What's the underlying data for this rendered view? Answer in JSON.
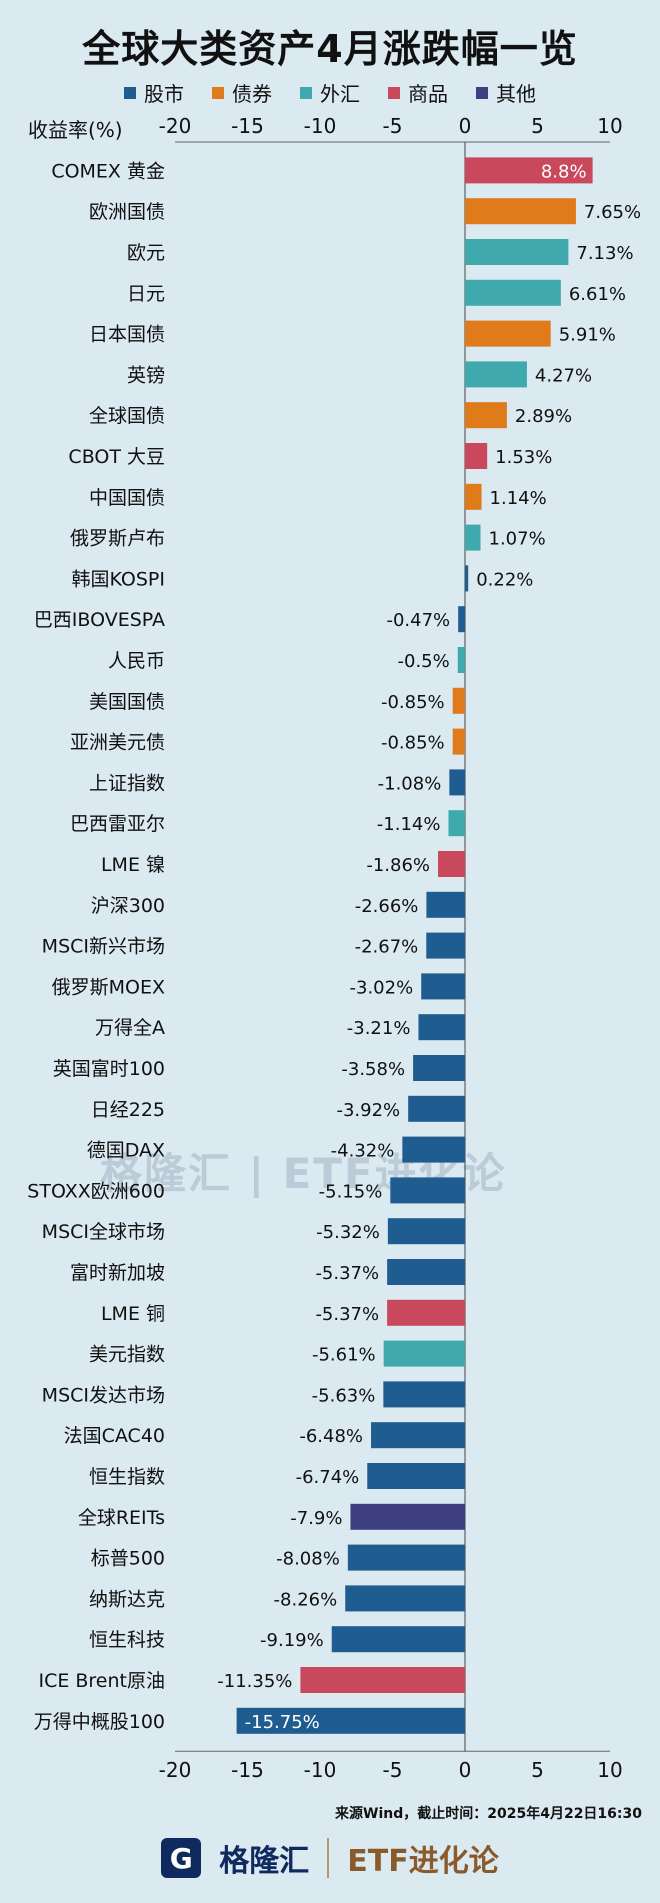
{
  "title": "全球大类资产4月涨跌幅一览",
  "legend": [
    {
      "label": "股市",
      "color": "#1f5c8f"
    },
    {
      "label": "债券",
      "color": "#e07b1b"
    },
    {
      "label": "外汇",
      "color": "#3fa9ad"
    },
    {
      "label": "商品",
      "color": "#c9485b"
    },
    {
      "label": "其他",
      "color": "#3d3f80"
    }
  ],
  "source": "来源Wind，截止时间：2025年4月22日16:30",
  "footer": {
    "brand": "格隆汇",
    "brand_mark": "G",
    "etf": "ETF进化论"
  },
  "watermark": "格隆汇 | ETF进化论",
  "chart_data": {
    "type": "bar",
    "orientation": "horizontal",
    "title": "全球大类资产4月涨跌幅一览",
    "xlabel": "收益率(%)",
    "xlim": [
      -20,
      10
    ],
    "xticks": [
      -20,
      -15,
      -10,
      -5,
      0,
      5,
      10
    ],
    "categories": [
      "COMEX 黄金",
      "欧洲国债",
      "欧元",
      "日元",
      "日本国债",
      "英镑",
      "全球国债",
      "CBOT 大豆",
      "中国国债",
      "俄罗斯卢布",
      "韩国KOSPI",
      "巴西IBOVESPA",
      "人民币",
      "美国国债",
      "亚洲美元债",
      "上证指数",
      "巴西雷亚尔",
      "LME 镍",
      "沪深300",
      "MSCI新兴市场",
      "俄罗斯MOEX",
      "万得全A",
      "英国富时100",
      "日经225",
      "德国DAX",
      "STOXX欧洲600",
      "MSCI全球市场",
      "富时新加坡",
      "LME 铜",
      "美元指数",
      "MSCI发达市场",
      "法国CAC40",
      "恒生指数",
      "全球REITs",
      "标普500",
      "纳斯达克",
      "恒生科技",
      "ICE Brent原油",
      "万得中概股100"
    ],
    "values": [
      8.8,
      7.65,
      7.13,
      6.61,
      5.91,
      4.27,
      2.89,
      1.53,
      1.14,
      1.07,
      0.22,
      -0.47,
      -0.5,
      -0.85,
      -0.85,
      -1.08,
      -1.14,
      -1.86,
      -2.66,
      -2.67,
      -3.02,
      -3.21,
      -3.58,
      -3.92,
      -4.32,
      -5.15,
      -5.32,
      -5.37,
      -5.37,
      -5.61,
      -5.63,
      -6.48,
      -6.74,
      -7.9,
      -8.08,
      -8.26,
      -9.19,
      -11.35,
      -15.75
    ],
    "value_labels": [
      "8.8%",
      "7.65%",
      "7.13%",
      "6.61%",
      "5.91%",
      "4.27%",
      "2.89%",
      "1.53%",
      "1.14%",
      "1.07%",
      "0.22%",
      "-0.47%",
      "-0.5%",
      "-0.85%",
      "-0.85%",
      "-1.08%",
      "-1.14%",
      "-1.86%",
      "-2.66%",
      "-2.67%",
      "-3.02%",
      "-3.21%",
      "-3.58%",
      "-3.92%",
      "-4.32%",
      "-5.15%",
      "-5.32%",
      "-5.37%",
      "-5.37%",
      "-5.61%",
      "-5.63%",
      "-6.48%",
      "-6.74%",
      "-7.9%",
      "-8.08%",
      "-8.26%",
      "-9.19%",
      "-11.35%",
      "-15.75%"
    ],
    "asset_class": [
      "商品",
      "债券",
      "外汇",
      "外汇",
      "债券",
      "外汇",
      "债券",
      "商品",
      "债券",
      "外汇",
      "股市",
      "股市",
      "外汇",
      "债券",
      "债券",
      "股市",
      "外汇",
      "商品",
      "股市",
      "股市",
      "股市",
      "股市",
      "股市",
      "股市",
      "股市",
      "股市",
      "股市",
      "股市",
      "商品",
      "外汇",
      "股市",
      "股市",
      "股市",
      "其他",
      "股市",
      "股市",
      "股市",
      "商品",
      "股市"
    ]
  }
}
